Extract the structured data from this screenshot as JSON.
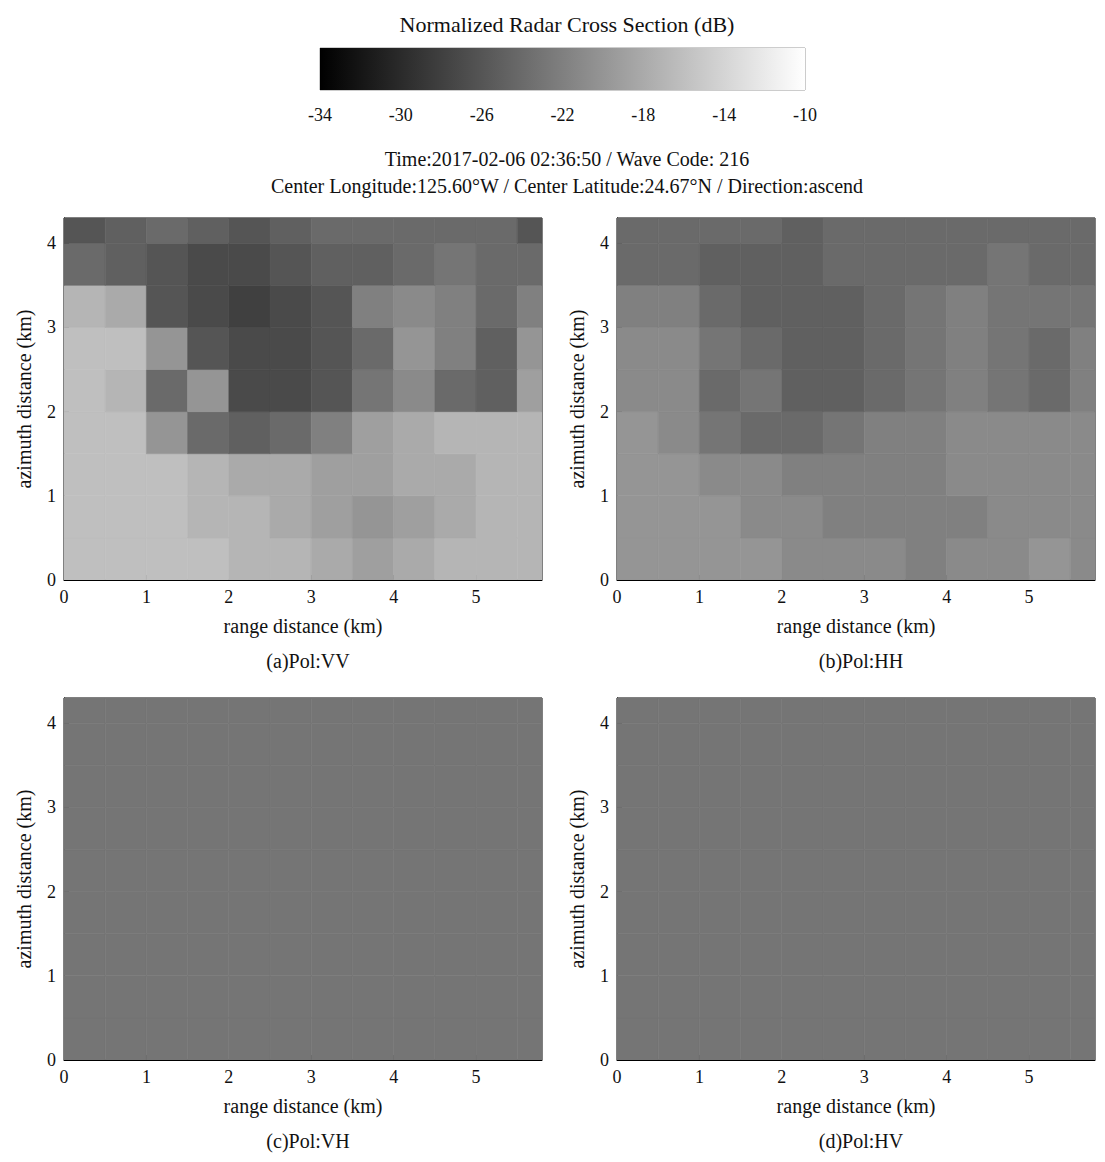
{
  "figure": {
    "header": [
      "Time:2017-02-06 02:36:50 / Wave Code: 216",
      "Center Longitude:125.60°W / Center Latitude:24.67°N / Direction:ascend"
    ],
    "colorbar": {
      "title": "Normalized Radar Cross Section (dB)",
      "range": [
        -34,
        -10
      ],
      "ticks": [
        -34,
        -30,
        -26,
        -22,
        -18,
        -14,
        -10
      ],
      "colors": [
        "#000000",
        "#ffffff"
      ]
    }
  },
  "chart_data": [
    {
      "type": "heatmap",
      "title": "(a)Pol:VV",
      "xlabel": "range distance (km)",
      "ylabel": "azimuth distance (km)",
      "xlim": [
        0,
        5.8
      ],
      "ylim": [
        0,
        4.3
      ],
      "xticks": [
        0,
        1,
        2,
        3,
        4,
        5
      ],
      "yticks": [
        0,
        1,
        2,
        3,
        4
      ],
      "x_edges": [
        0,
        0.5,
        1,
        1.5,
        2,
        2.5,
        3,
        3.5,
        4,
        4.5,
        5,
        5.5,
        5.8
      ],
      "y_edges": [
        0,
        0.5,
        1,
        1.5,
        2,
        2.5,
        3,
        3.5,
        4,
        4.3
      ],
      "cells": [
        [
          -16,
          -16,
          -16,
          -16,
          -17,
          -17,
          -18,
          -19,
          -18,
          -17,
          -17,
          -17
        ],
        [
          -16,
          -16,
          -16,
          -17,
          -17,
          -18,
          -19,
          -20,
          -19,
          -18,
          -17,
          -17
        ],
        [
          -16,
          -16,
          -16,
          -17,
          -18,
          -18,
          -19,
          -19,
          -18,
          -18,
          -17,
          -17
        ],
        [
          -16,
          -16,
          -20,
          -24,
          -25,
          -24,
          -22,
          -19,
          -18,
          -17,
          -17,
          -17
        ],
        [
          -16,
          -17,
          -24,
          -20,
          -27,
          -27,
          -26,
          -23,
          -21,
          -24,
          -25,
          -19
        ],
        [
          -16,
          -16,
          -20,
          -26,
          -27,
          -27,
          -26,
          -24,
          -20,
          -22,
          -25,
          -20
        ],
        [
          -17,
          -18,
          -26,
          -27,
          -28,
          -27,
          -26,
          -22,
          -21,
          -22,
          -24,
          -22
        ],
        [
          -24,
          -25,
          -26,
          -27,
          -27,
          -26,
          -25,
          -25,
          -24,
          -23,
          -24,
          -24
        ],
        [
          -26,
          -25,
          -24,
          -25,
          -26,
          -25,
          -24,
          -24,
          -24,
          -24,
          -24,
          -26
        ]
      ]
    },
    {
      "type": "heatmap",
      "title": "(b)Pol:HH",
      "xlabel": "range distance (km)",
      "ylabel": "azimuth distance (km)",
      "xlim": [
        0,
        5.8
      ],
      "ylim": [
        0,
        4.3
      ],
      "xticks": [
        0,
        1,
        2,
        3,
        4,
        5
      ],
      "yticks": [
        0,
        1,
        2,
        3,
        4
      ],
      "x_edges": [
        0,
        0.5,
        1,
        1.5,
        2,
        2.5,
        3,
        3.5,
        4,
        4.5,
        5,
        5.5,
        5.8
      ],
      "y_edges": [
        0,
        0.5,
        1,
        1.5,
        2,
        2.5,
        3,
        3.5,
        4,
        4.3
      ],
      "cells": [
        [
          -20,
          -20,
          -20,
          -20,
          -21,
          -21,
          -21,
          -22,
          -21,
          -21,
          -20,
          -21
        ],
        [
          -20,
          -20,
          -20,
          -21,
          -21,
          -22,
          -22,
          -22,
          -22,
          -21,
          -21,
          -21
        ],
        [
          -20,
          -20,
          -21,
          -21,
          -22,
          -22,
          -22,
          -22,
          -21,
          -21,
          -21,
          -21
        ],
        [
          -20,
          -21,
          -23,
          -24,
          -24,
          -23,
          -22,
          -22,
          -21,
          -21,
          -21,
          -21
        ],
        [
          -21,
          -21,
          -24,
          -23,
          -25,
          -25,
          -24,
          -23,
          -22,
          -23,
          -24,
          -22
        ],
        [
          -21,
          -21,
          -23,
          -24,
          -25,
          -25,
          -24,
          -23,
          -22,
          -23,
          -24,
          -22
        ],
        [
          -22,
          -22,
          -24,
          -25,
          -25,
          -25,
          -24,
          -23,
          -22,
          -23,
          -23,
          -23
        ],
        [
          -24,
          -24,
          -25,
          -25,
          -25,
          -24,
          -24,
          -24,
          -24,
          -23,
          -24,
          -24
        ],
        [
          -24,
          -24,
          -24,
          -24,
          -25,
          -24,
          -24,
          -24,
          -24,
          -24,
          -24,
          -24
        ]
      ]
    },
    {
      "type": "heatmap",
      "title": "(c)Pol:VH",
      "xlabel": "range distance (km)",
      "ylabel": "azimuth distance (km)",
      "xlim": [
        0,
        5.8
      ],
      "ylim": [
        0,
        4.3
      ],
      "xticks": [
        0,
        1,
        2,
        3,
        4,
        5
      ],
      "yticks": [
        0,
        1,
        2,
        3,
        4
      ],
      "x_edges": [
        0,
        0.5,
        1,
        1.5,
        2,
        2.5,
        3,
        3.5,
        4,
        4.5,
        5,
        5.5,
        5.8
      ],
      "y_edges": [
        0,
        0.5,
        1,
        1.5,
        2,
        2.5,
        3,
        3.5,
        4,
        4.3
      ],
      "cells": [
        [
          -23,
          -23,
          -23,
          -23,
          -23,
          -23,
          -23,
          -23,
          -23,
          -23,
          -23,
          -23
        ],
        [
          -23,
          -23,
          -23,
          -23,
          -23,
          -23,
          -23,
          -23,
          -23,
          -23,
          -23,
          -23
        ],
        [
          -23,
          -23,
          -23,
          -23,
          -23,
          -23,
          -23,
          -23,
          -23,
          -23,
          -23,
          -23
        ],
        [
          -23,
          -23,
          -23,
          -23,
          -23,
          -23,
          -23,
          -23,
          -23,
          -23,
          -23,
          -23
        ],
        [
          -23,
          -23,
          -23,
          -23,
          -23,
          -23,
          -23,
          -23,
          -23,
          -23,
          -23,
          -23
        ],
        [
          -23,
          -23,
          -23,
          -23,
          -23,
          -23,
          -23,
          -23,
          -23,
          -23,
          -23,
          -23
        ],
        [
          -23,
          -23,
          -23,
          -23,
          -23,
          -23,
          -23,
          -23,
          -23,
          -23,
          -23,
          -23
        ],
        [
          -23,
          -23,
          -23,
          -23,
          -23,
          -23,
          -23,
          -23,
          -23,
          -23,
          -23,
          -23
        ],
        [
          -23,
          -23,
          -23,
          -23,
          -23,
          -23,
          -23,
          -23,
          -23,
          -23,
          -23,
          -23
        ]
      ]
    },
    {
      "type": "heatmap",
      "title": "(d)Pol:HV",
      "xlabel": "range distance (km)",
      "ylabel": "azimuth distance (km)",
      "xlim": [
        0,
        5.8
      ],
      "ylim": [
        0,
        4.3
      ],
      "xticks": [
        0,
        1,
        2,
        3,
        4,
        5
      ],
      "yticks": [
        0,
        1,
        2,
        3,
        4
      ],
      "x_edges": [
        0,
        0.5,
        1,
        1.5,
        2,
        2.5,
        3,
        3.5,
        4,
        4.5,
        5,
        5.5,
        5.8
      ],
      "y_edges": [
        0,
        0.5,
        1,
        1.5,
        2,
        2.5,
        3,
        3.5,
        4,
        4.3
      ],
      "cells": [
        [
          -23,
          -23,
          -23,
          -23,
          -23,
          -23,
          -23,
          -23,
          -23,
          -23,
          -23,
          -23
        ],
        [
          -23,
          -23,
          -23,
          -23,
          -23,
          -23,
          -23,
          -23,
          -23,
          -23,
          -23,
          -23
        ],
        [
          -23,
          -23,
          -23,
          -23,
          -23,
          -23,
          -23,
          -23,
          -23,
          -23,
          -23,
          -23
        ],
        [
          -23,
          -23,
          -23,
          -23,
          -23,
          -23,
          -23,
          -23,
          -23,
          -23,
          -23,
          -23
        ],
        [
          -23,
          -23,
          -23,
          -23,
          -23,
          -23,
          -23,
          -23,
          -23,
          -23,
          -23,
          -23
        ],
        [
          -23,
          -23,
          -23,
          -23,
          -23,
          -23,
          -23,
          -23,
          -23,
          -23,
          -23,
          -23
        ],
        [
          -23,
          -23,
          -23,
          -23,
          -23,
          -23,
          -23,
          -23,
          -23,
          -23,
          -23,
          -23
        ],
        [
          -23,
          -23,
          -23,
          -23,
          -23,
          -23,
          -23,
          -23,
          -23,
          -23,
          -23,
          -23
        ],
        [
          -23,
          -23,
          -23,
          -23,
          -23,
          -23,
          -23,
          -23,
          -23,
          -23,
          -23,
          -23
        ]
      ]
    }
  ]
}
